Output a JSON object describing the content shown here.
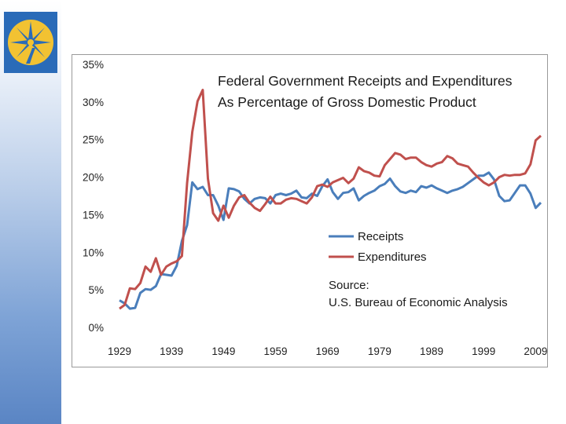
{
  "slide": {
    "logo": "compass-star-logo"
  },
  "chart_data": {
    "type": "line",
    "title_lines": [
      "Federal Government Receipts and Expenditures",
      "As Percentage of Gross Domestic  Product"
    ],
    "note_lines": [
      "Source:",
      "U.S. Bureau of Economic Analysis"
    ],
    "xlabel": "",
    "ylabel": "",
    "xlim": [
      1929,
      2010
    ],
    "ylim": [
      0,
      35
    ],
    "x_ticks": [
      1929,
      1939,
      1949,
      1959,
      1969,
      1979,
      1989,
      1999,
      2009
    ],
    "y_ticks": [
      "0%",
      "5%",
      "10%",
      "15%",
      "20%",
      "25%",
      "30%",
      "35%"
    ],
    "y_tick_values": [
      0,
      5,
      10,
      15,
      20,
      25,
      30,
      35
    ],
    "grid": false,
    "legend_position": "center-right",
    "series": [
      {
        "name": "Receipts",
        "color": "#4a7ebb",
        "x": [
          1929,
          1930,
          1931,
          1932,
          1933,
          1934,
          1935,
          1936,
          1937,
          1938,
          1939,
          1940,
          1941,
          1942,
          1943,
          1944,
          1945,
          1946,
          1947,
          1948,
          1949,
          1950,
          1951,
          1952,
          1953,
          1954,
          1955,
          1956,
          1957,
          1958,
          1959,
          1960,
          1961,
          1962,
          1963,
          1964,
          1965,
          1966,
          1967,
          1968,
          1969,
          1970,
          1971,
          1972,
          1973,
          1974,
          1975,
          1976,
          1977,
          1978,
          1979,
          1980,
          1981,
          1982,
          1983,
          1984,
          1985,
          1986,
          1987,
          1988,
          1989,
          1990,
          1991,
          1992,
          1993,
          1994,
          1995,
          1996,
          1997,
          1998,
          1999,
          2000,
          2001,
          2002,
          2003,
          2004,
          2005,
          2006,
          2007,
          2008,
          2009,
          2010
        ],
        "values": [
          3.6,
          3.2,
          2.5,
          2.6,
          4.6,
          5.1,
          5.0,
          5.5,
          7.1,
          7.0,
          6.9,
          8.2,
          11.5,
          13.6,
          19.3,
          18.4,
          18.7,
          17.6,
          17.6,
          16.2,
          14.3,
          18.5,
          18.4,
          18.1,
          17.1,
          16.5,
          17.1,
          17.3,
          17.2,
          16.5,
          17.6,
          17.8,
          17.6,
          17.8,
          18.2,
          17.3,
          17.2,
          17.8,
          17.5,
          18.8,
          19.7,
          18.0,
          17.1,
          17.9,
          18.0,
          18.5,
          16.9,
          17.5,
          17.9,
          18.2,
          18.8,
          19.1,
          19.8,
          18.8,
          18.1,
          17.9,
          18.2,
          18.0,
          18.8,
          18.6,
          18.9,
          18.5,
          18.2,
          17.9,
          18.2,
          18.4,
          18.7,
          19.2,
          19.7,
          20.2,
          20.2,
          20.6,
          19.7,
          17.5,
          16.8,
          16.9,
          17.9,
          18.9,
          18.9,
          17.8,
          15.9,
          16.6
        ]
      },
      {
        "name": "Expenditures",
        "color": "#c0504d",
        "x": [
          1929,
          1930,
          1931,
          1932,
          1933,
          1934,
          1935,
          1936,
          1937,
          1938,
          1939,
          1940,
          1941,
          1942,
          1943,
          1944,
          1945,
          1946,
          1947,
          1948,
          1949,
          1950,
          1951,
          1952,
          1953,
          1954,
          1955,
          1956,
          1957,
          1958,
          1959,
          1960,
          1961,
          1962,
          1963,
          1964,
          1965,
          1966,
          1967,
          1968,
          1969,
          1970,
          1971,
          1972,
          1973,
          1974,
          1975,
          1976,
          1977,
          1978,
          1979,
          1980,
          1981,
          1982,
          1983,
          1984,
          1985,
          1986,
          1987,
          1988,
          1989,
          1990,
          1991,
          1992,
          1993,
          1994,
          1995,
          1996,
          1997,
          1998,
          1999,
          2000,
          2001,
          2002,
          2003,
          2004,
          2005,
          2006,
          2007,
          2008,
          2009,
          2010
        ],
        "values": [
          2.5,
          3.0,
          5.2,
          5.1,
          5.9,
          8.1,
          7.4,
          9.2,
          7.0,
          8.1,
          8.5,
          8.8,
          9.5,
          19.2,
          26.0,
          30.1,
          31.6,
          19.8,
          15.2,
          14.2,
          16.2,
          14.6,
          16.2,
          17.3,
          17.6,
          16.6,
          15.9,
          15.5,
          16.4,
          17.4,
          16.5,
          16.5,
          17.0,
          17.2,
          17.1,
          16.8,
          16.5,
          17.3,
          18.8,
          19.0,
          18.7,
          19.3,
          19.6,
          19.9,
          19.2,
          19.8,
          21.3,
          20.8,
          20.6,
          20.2,
          20.1,
          21.6,
          22.4,
          23.2,
          23.0,
          22.4,
          22.6,
          22.6,
          22.0,
          21.6,
          21.4,
          21.8,
          22.0,
          22.8,
          22.5,
          21.8,
          21.6,
          21.4,
          20.6,
          19.9,
          19.3,
          18.9,
          19.3,
          20.0,
          20.3,
          20.2,
          20.3,
          20.3,
          20.5,
          21.7,
          24.9,
          25.5
        ]
      }
    ]
  }
}
